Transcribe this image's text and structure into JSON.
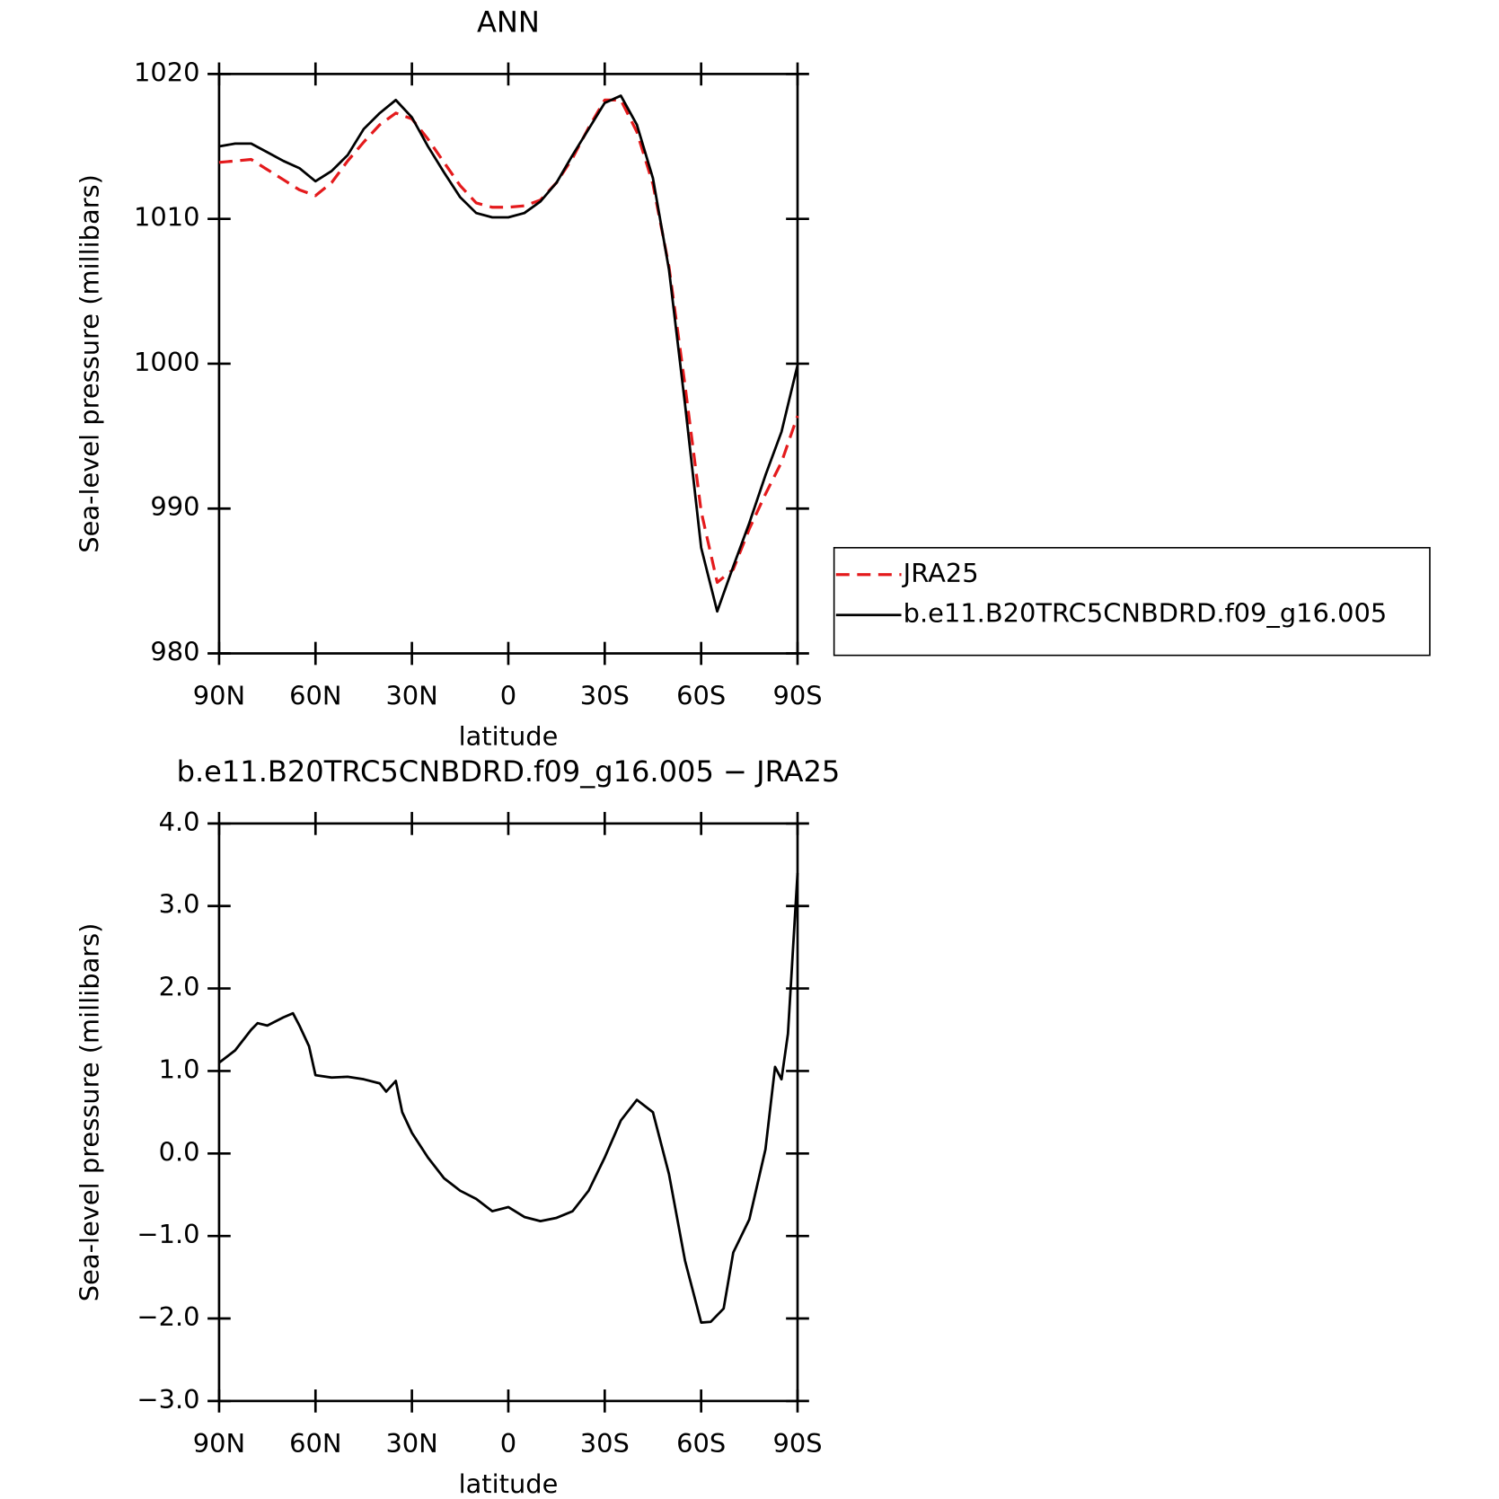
{
  "chart_data": [
    {
      "type": "line",
      "title": "ANN",
      "xlabel": "latitude",
      "ylabel": "Sea-level pressure (millibars)",
      "x": [
        90,
        85,
        80,
        75,
        70,
        65,
        60,
        55,
        50,
        45,
        40,
        35,
        30,
        25,
        20,
        15,
        10,
        5,
        0,
        -5,
        -10,
        -15,
        -20,
        -25,
        -30,
        -35,
        -40,
        -45,
        -50,
        -55,
        -60,
        -65,
        -70,
        -75,
        -80,
        -85,
        -90
      ],
      "series": [
        {
          "name": "JRA25",
          "color": "#e41a1c",
          "dashed": true,
          "values": [
            1013.9,
            1014.0,
            1014.1,
            1013.4,
            1012.7,
            1012.0,
            1011.6,
            1012.5,
            1014.0,
            1015.3,
            1016.5,
            1017.3,
            1016.9,
            1015.5,
            1013.9,
            1012.3,
            1011.1,
            1010.8,
            1010.8,
            1010.9,
            1011.3,
            1012.5,
            1014.2,
            1016.3,
            1018.2,
            1018.2,
            1016.0,
            1012.4,
            1006.7,
            998.5,
            989.8,
            984.9,
            985.8,
            988.6,
            991.0,
            993.2,
            996.4
          ]
        },
        {
          "name": "b.e11.B20TRC5CNBDRD.f09_g16.005",
          "color": "#000000",
          "dashed": false,
          "values": [
            1015.0,
            1015.2,
            1015.2,
            1014.6,
            1014.0,
            1013.5,
            1012.6,
            1013.3,
            1014.4,
            1016.2,
            1017.3,
            1018.2,
            1017.0,
            1015.0,
            1013.2,
            1011.5,
            1010.4,
            1010.1,
            1010.1,
            1010.4,
            1011.2,
            1012.5,
            1014.4,
            1016.2,
            1018.0,
            1018.5,
            1016.5,
            1012.8,
            1006.5,
            997.2,
            987.3,
            982.9,
            986.0,
            989.0,
            992.3,
            995.3,
            999.9
          ]
        }
      ],
      "xlim": [
        90,
        -90
      ],
      "xticks": [
        {
          "value": 90,
          "label": "90N"
        },
        {
          "value": 60,
          "label": "60N"
        },
        {
          "value": 30,
          "label": "30N"
        },
        0,
        {
          "value": -30,
          "label": "30S"
        },
        {
          "value": -60,
          "label": "60S"
        },
        {
          "value": -90,
          "label": "90S"
        }
      ],
      "ylim": [
        980,
        1020
      ],
      "yticks": [
        980,
        990,
        1000,
        1010,
        1020
      ],
      "legend": "right"
    },
    {
      "type": "line",
      "title": "b.e11.B20TRC5CNBDRD.f09_g16.005 − JRA25",
      "xlabel": "latitude",
      "ylabel": "Sea-level pressure (millibars)",
      "x": [
        90,
        85,
        80,
        78,
        75,
        70,
        67,
        65,
        62,
        60,
        55,
        50,
        45,
        40,
        38,
        35,
        33,
        30,
        25,
        20,
        15,
        10,
        5,
        0,
        -5,
        -10,
        -15,
        -20,
        -25,
        -30,
        -35,
        -40,
        -45,
        -50,
        -55,
        -60,
        -63,
        -67,
        -70,
        -75,
        -80,
        -83,
        -85,
        -87,
        -90
      ],
      "values": [
        1.1,
        1.25,
        1.5,
        1.58,
        1.55,
        1.65,
        1.7,
        1.55,
        1.3,
        0.95,
        0.92,
        0.93,
        0.9,
        0.85,
        0.75,
        0.88,
        0.5,
        0.25,
        -0.05,
        -0.3,
        -0.45,
        -0.55,
        -0.7,
        -0.65,
        -0.77,
        -0.82,
        -0.78,
        -0.7,
        -0.45,
        -0.05,
        0.4,
        0.65,
        0.5,
        -0.25,
        -1.3,
        -2.05,
        -2.04,
        -1.88,
        -1.2,
        -0.8,
        0.05,
        1.05,
        0.9,
        1.45,
        3.4
      ],
      "color": "#000000",
      "xlim": [
        90,
        -90
      ],
      "xticks": [
        {
          "value": 90,
          "label": "90N"
        },
        {
          "value": 60,
          "label": "60N"
        },
        {
          "value": 30,
          "label": "30N"
        },
        0,
        {
          "value": -30,
          "label": "30S"
        },
        {
          "value": -60,
          "label": "60S"
        },
        {
          "value": -90,
          "label": "90S"
        }
      ],
      "ylim": [
        -3,
        4
      ],
      "yticks": [
        {
          "value": -3,
          "label": "−3.0"
        },
        {
          "value": -2,
          "label": "−2.0"
        },
        {
          "value": -1,
          "label": "−1.0"
        },
        {
          "value": 0,
          "label": "0.0"
        },
        {
          "value": 1,
          "label": "1.0"
        },
        {
          "value": 2,
          "label": "2.0"
        },
        {
          "value": 3,
          "label": "3.0"
        },
        {
          "value": 4,
          "label": "4.0"
        }
      ]
    }
  ]
}
